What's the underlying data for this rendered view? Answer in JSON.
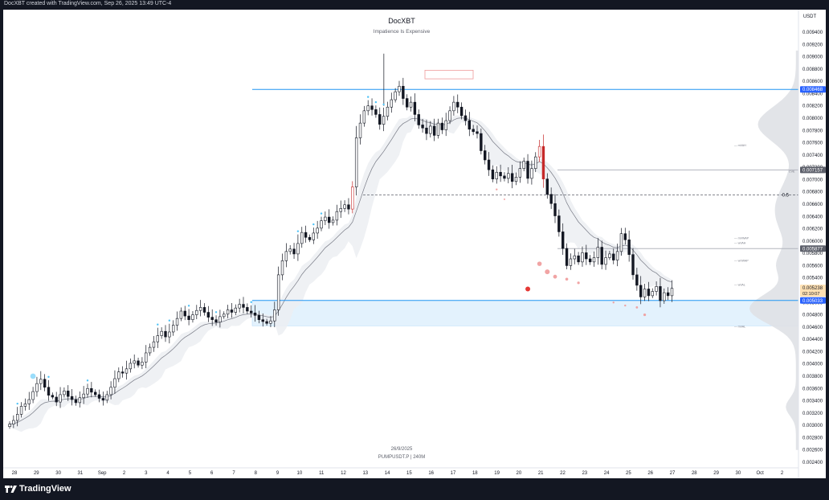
{
  "header": {
    "caption": "DocXBT created with TradingView.com, Sep 26, 2025 13:49 UTC-4"
  },
  "chart_data": {
    "type": "candlestick",
    "title": "DocXBT",
    "subtitle": "Impatience Is Expensive",
    "currency": "USDT",
    "date_label": "26/9/2025",
    "symbol_label": "PUMPUSDT.P  |  240M",
    "ylim": [
      0.0024,
      0.0095
    ],
    "y_ticks": [
      "0.009400",
      "0.009200",
      "0.009000",
      "0.008800",
      "0.008600",
      "0.008400",
      "0.008200",
      "0.008000",
      "0.007800",
      "0.007600",
      "0.007400",
      "0.007200",
      "0.007000",
      "0.006800",
      "0.006600",
      "0.006400",
      "0.006200",
      "0.006000",
      "0.005800",
      "0.005600",
      "0.005400",
      "0.005200",
      "0.005000",
      "0.004800",
      "0.004600",
      "0.004400",
      "0.004200",
      "0.004000",
      "0.003800",
      "0.003600",
      "0.003400",
      "0.003200",
      "0.003000",
      "0.002800",
      "0.002600",
      "0.002400"
    ],
    "x_labels": [
      "28",
      "29",
      "30",
      "31",
      "Sep",
      "2",
      "3",
      "4",
      "5",
      "6",
      "7",
      "8",
      "9",
      "10",
      "11",
      "12",
      "13",
      "14",
      "15",
      "16",
      "17",
      "18",
      "19",
      "20",
      "21",
      "22",
      "23",
      "24",
      "25",
      "26",
      "27",
      "28",
      "29",
      "30",
      "Oct",
      "2"
    ],
    "price_labels": [
      {
        "text": "0.008468",
        "value": 0.008468,
        "color": "#2962ff"
      },
      {
        "text": "0.007157",
        "value": 0.007157,
        "color": "#5d606b"
      },
      {
        "text": "0.005877",
        "value": 0.005877,
        "color": "#5d606b"
      },
      {
        "text": "0.005238",
        "value": 0.005238,
        "color": "#ffe0b2",
        "sub": "02:10:07"
      },
      {
        "text": "0.005033",
        "value": 0.005033,
        "color": "#2962ff"
      }
    ],
    "levels": [
      {
        "value": 0.008468,
        "style": "solid",
        "color": "#2196f3"
      },
      {
        "value": 0.005033,
        "style": "solid",
        "color": "#2196f3"
      },
      {
        "value": 0.007157,
        "style": "solid",
        "color": "#b2b5be"
      },
      {
        "value": 0.005877,
        "style": "solid",
        "color": "#b2b5be"
      },
      {
        "value": 0.00675,
        "style": "dashed",
        "color": "#5d606b",
        "label": "0.5"
      }
    ],
    "zone": {
      "from": 0.00462,
      "to": 0.005033,
      "color": "#e3f2fd"
    },
    "top_box": {
      "from": 0.00864,
      "to": 0.00878,
      "color": "#ef9a9a"
    },
    "profile_tags": [
      "CVE",
      "mVAH",
      "mVWAP",
      "wVAH",
      "wVWAP",
      "wVAL",
      "mVAL"
    ],
    "closes": [
      0.00302,
      0.00308,
      0.00318,
      0.00331,
      0.00335,
      0.00342,
      0.00355,
      0.00368,
      0.00375,
      0.00362,
      0.00349,
      0.00346,
      0.00338,
      0.0035,
      0.00356,
      0.00347,
      0.00342,
      0.00337,
      0.00345,
      0.00351,
      0.0036,
      0.00354,
      0.0035,
      0.00344,
      0.00341,
      0.0035,
      0.00362,
      0.00376,
      0.00387,
      0.00385,
      0.00392,
      0.00401,
      0.00405,
      0.00398,
      0.00403,
      0.00418,
      0.00427,
      0.00436,
      0.00446,
      0.00453,
      0.00444,
      0.00452,
      0.00463,
      0.00474,
      0.00486,
      0.00478,
      0.00472,
      0.0048,
      0.00487,
      0.00492,
      0.00484,
      0.00476,
      0.00472,
      0.00468,
      0.00477,
      0.00481,
      0.00488,
      0.00484,
      0.00491,
      0.00497,
      0.00492,
      0.00486,
      0.00483,
      0.00479,
      0.00472,
      0.00469,
      0.00466,
      0.0047,
      0.00488,
      0.00545,
      0.00568,
      0.00583,
      0.00587,
      0.00579,
      0.00596,
      0.00614,
      0.00606,
      0.00602,
      0.00613,
      0.00621,
      0.00633,
      0.00639,
      0.0063,
      0.00634,
      0.00648,
      0.00653,
      0.00659,
      0.00652,
      0.00688,
      0.00768,
      0.00792,
      0.00812,
      0.0082,
      0.00814,
      0.00806,
      0.0079,
      0.00803,
      0.00818,
      0.0083,
      0.00843,
      0.00852,
      0.00832,
      0.00818,
      0.00826,
      0.00806,
      0.00789,
      0.00784,
      0.00775,
      0.00787,
      0.00772,
      0.00792,
      0.00781,
      0.00796,
      0.00812,
      0.00826,
      0.00818,
      0.00804,
      0.00796,
      0.00782,
      0.00778,
      0.00775,
      0.00747,
      0.00732,
      0.00716,
      0.00701,
      0.00712,
      0.00706,
      0.00702,
      0.0071,
      0.00697,
      0.00704,
      0.00718,
      0.0073,
      0.00702,
      0.00718,
      0.00737,
      0.00754,
      0.00701,
      0.00676,
      0.00661,
      0.00641,
      0.00615,
      0.00588,
      0.0056,
      0.00571,
      0.00576,
      0.00566,
      0.00581,
      0.00571,
      0.00566,
      0.00573,
      0.0059,
      0.00562,
      0.00573,
      0.00579,
      0.00569,
      0.00583,
      0.00612,
      0.00602,
      0.00578,
      0.00545,
      0.00528,
      0.00509,
      0.00522,
      0.00511,
      0.00518,
      0.00526,
      0.00503,
      0.00516,
      0.00511,
      0.00523
    ]
  }
}
